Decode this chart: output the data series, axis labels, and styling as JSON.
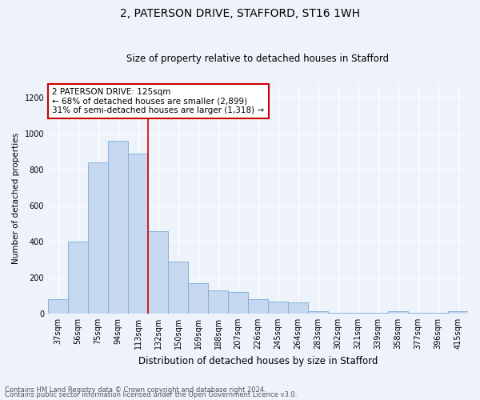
{
  "title1": "2, PATERSON DRIVE, STAFFORD, ST16 1WH",
  "title2": "Size of property relative to detached houses in Stafford",
  "xlabel": "Distribution of detached houses by size in Stafford",
  "ylabel": "Number of detached properties",
  "categories": [
    "37sqm",
    "56sqm",
    "75sqm",
    "94sqm",
    "113sqm",
    "132sqm",
    "150sqm",
    "169sqm",
    "188sqm",
    "207sqm",
    "226sqm",
    "245sqm",
    "264sqm",
    "283sqm",
    "302sqm",
    "321sqm",
    "339sqm",
    "358sqm",
    "377sqm",
    "396sqm",
    "415sqm"
  ],
  "values": [
    80,
    400,
    840,
    960,
    890,
    460,
    290,
    170,
    130,
    120,
    80,
    65,
    60,
    15,
    5,
    5,
    5,
    15,
    5,
    5,
    15
  ],
  "bar_color": "#c5d8f0",
  "bar_edgecolor": "#7aaed4",
  "vline_pos": 4.5,
  "annotation_text": "2 PATERSON DRIVE: 125sqm\n← 68% of detached houses are smaller (2,899)\n31% of semi-detached houses are larger (1,318) →",
  "annotation_box_facecolor": "#ffffff",
  "annotation_box_edgecolor": "#cc0000",
  "footer1": "Contains HM Land Registry data © Crown copyright and database right 2024.",
  "footer2": "Contains public sector information licensed under the Open Government Licence v3.0.",
  "bg_color": "#eef2fa",
  "plot_bg_color": "#eef2fa",
  "grid_color": "#ffffff",
  "vline_color": "#cc0000",
  "ylim": [
    0,
    1280
  ],
  "yticks": [
    0,
    200,
    400,
    600,
    800,
    1000,
    1200
  ],
  "title1_fontsize": 10,
  "title2_fontsize": 8.5,
  "xlabel_fontsize": 8.5,
  "ylabel_fontsize": 7.5,
  "tick_fontsize": 7,
  "footer_fontsize": 6.0,
  "ann_fontsize": 7.5
}
